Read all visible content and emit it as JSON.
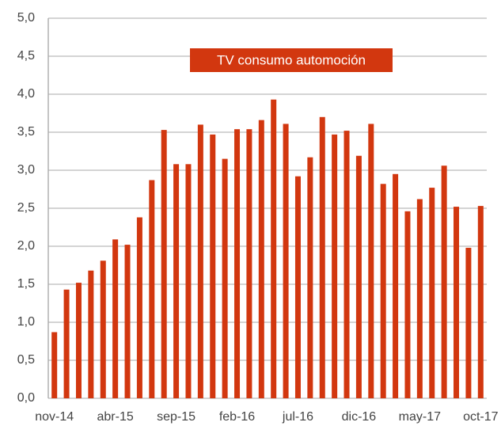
{
  "chart_data": {
    "type": "bar",
    "title": "TV consumo automoción",
    "categories": [
      "nov-14",
      null,
      null,
      null,
      null,
      "abr-15",
      null,
      null,
      null,
      null,
      "sep-15",
      null,
      null,
      null,
      null,
      "feb-16",
      null,
      null,
      null,
      null,
      "jul-16",
      null,
      null,
      null,
      null,
      "dic-16",
      null,
      null,
      null,
      null,
      "may-17",
      null,
      null,
      null,
      null,
      "oct-17"
    ],
    "values": [
      0.87,
      1.43,
      1.52,
      1.68,
      1.81,
      2.09,
      2.02,
      2.38,
      2.87,
      3.53,
      3.08,
      3.08,
      3.6,
      3.47,
      3.15,
      3.54,
      3.54,
      3.66,
      3.93,
      3.61,
      2.92,
      3.17,
      3.7,
      3.47,
      3.52,
      3.19,
      3.61,
      2.82,
      2.95,
      2.46,
      2.62,
      2.77,
      3.06,
      2.52,
      1.98,
      2.53
    ],
    "color": "#d2370f",
    "ylim": [
      0,
      5
    ],
    "yticks": [
      {
        "value": 0,
        "label": "0,0"
      },
      {
        "value": 0.5,
        "label": "0,5"
      },
      {
        "value": 1,
        "label": "1,0"
      },
      {
        "value": 1.5,
        "label": "1,5"
      },
      {
        "value": 2,
        "label": "2,0"
      },
      {
        "value": 2.5,
        "label": "2,5"
      },
      {
        "value": 3,
        "label": "3,0"
      },
      {
        "value": 3.5,
        "label": "3,5"
      },
      {
        "value": 4,
        "label": "4,0"
      },
      {
        "value": 4.5,
        "label": "4,5"
      },
      {
        "value": 5,
        "label": "5,0"
      }
    ],
    "grid": true
  }
}
